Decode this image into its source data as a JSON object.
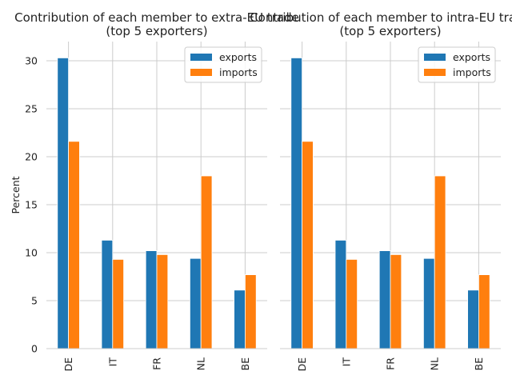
{
  "colors": {
    "exports": "#1f77b4",
    "imports": "#ff7f0e",
    "grid": "#cccccc",
    "spine": "#cccccc"
  },
  "chart_data": [
    {
      "type": "bar",
      "title": "Contribution of each member to extra-EU trade",
      "subtitle": "(top 5 exporters)",
      "ylabel": "Percent",
      "xlabel": "",
      "categories": [
        "DE",
        "IT",
        "FR",
        "NL",
        "BE"
      ],
      "ylim": [
        0,
        32
      ],
      "yticks": [
        0,
        5,
        10,
        15,
        20,
        25,
        30
      ],
      "grid": true,
      "legend": "top-right",
      "series": [
        {
          "name": "exports",
          "values": [
            30.3,
            11.3,
            10.2,
            9.4,
            6.1
          ]
        },
        {
          "name": "imports",
          "values": [
            21.6,
            9.3,
            9.8,
            18.0,
            7.7
          ]
        }
      ]
    },
    {
      "type": "bar",
      "title": "Contribution of each member to intra-EU trade",
      "subtitle": "(top 5 exporters)",
      "ylabel": "",
      "xlabel": "",
      "categories": [
        "DE",
        "IT",
        "FR",
        "NL",
        "BE"
      ],
      "ylim": [
        0,
        32
      ],
      "yticks": [
        0,
        5,
        10,
        15,
        20,
        25,
        30
      ],
      "grid": true,
      "legend": "top-right",
      "series": [
        {
          "name": "exports",
          "values": [
            30.3,
            11.3,
            10.2,
            9.4,
            6.1
          ]
        },
        {
          "name": "imports",
          "values": [
            21.6,
            9.3,
            9.8,
            18.0,
            7.7
          ]
        }
      ]
    }
  ]
}
